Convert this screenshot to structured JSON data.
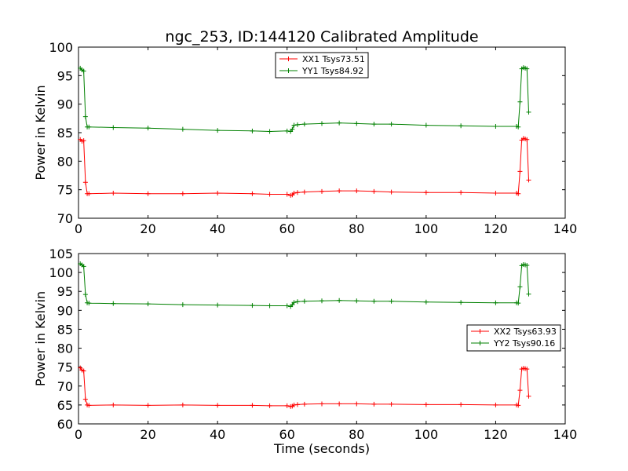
{
  "chart_data": [
    {
      "type": "line",
      "title": "ngc_253, ID:144120 Calibrated Amplitude",
      "xlabel": "",
      "ylabel": "Power in Kelvin",
      "xlim": [
        0,
        140
      ],
      "ylim": [
        70,
        100
      ],
      "xticks": [
        0,
        20,
        40,
        60,
        80,
        100,
        120,
        140
      ],
      "yticks": [
        70,
        75,
        80,
        85,
        90,
        95,
        100
      ],
      "legend_position": "top-center",
      "series": [
        {
          "name": "XX1 Tsys73.51",
          "color": "#ff0000",
          "x": [
            0.5,
            1,
            1.5,
            2,
            2.5,
            3,
            10,
            20,
            30,
            40,
            50,
            55,
            60,
            61,
            61.5,
            62,
            63,
            65,
            70,
            75,
            80,
            85,
            90,
            100,
            110,
            120,
            126,
            126.5,
            127,
            127.5,
            128,
            128.5,
            129,
            129.5
          ],
          "values": [
            83.8,
            83.5,
            83.6,
            76.3,
            74.3,
            74.3,
            74.4,
            74.3,
            74.3,
            74.4,
            74.3,
            74.2,
            74.2,
            74.0,
            74.1,
            74.4,
            74.5,
            74.6,
            74.7,
            74.8,
            74.8,
            74.7,
            74.6,
            74.5,
            74.5,
            74.4,
            74.4,
            74.3,
            78.2,
            83.7,
            84.0,
            83.9,
            83.8,
            76.7
          ]
        },
        {
          "name": "YY1 Tsys84.92",
          "color": "#008000",
          "x": [
            0.5,
            1,
            1.5,
            2,
            2.5,
            3,
            10,
            20,
            30,
            40,
            50,
            55,
            60,
            61,
            61.5,
            62,
            63,
            65,
            70,
            75,
            80,
            85,
            90,
            100,
            110,
            120,
            126,
            126.5,
            127,
            127.5,
            128,
            128.5,
            129,
            129.5
          ],
          "values": [
            96.3,
            96.0,
            95.8,
            87.8,
            86.0,
            86.0,
            85.9,
            85.8,
            85.6,
            85.4,
            85.3,
            85.2,
            85.3,
            85.2,
            85.6,
            86.3,
            86.4,
            86.5,
            86.6,
            86.7,
            86.6,
            86.5,
            86.5,
            86.3,
            86.2,
            86.1,
            86.1,
            86.0,
            90.4,
            96.2,
            96.4,
            96.3,
            96.2,
            88.6
          ]
        }
      ]
    },
    {
      "type": "line",
      "title": "",
      "xlabel": "Time (seconds)",
      "ylabel": "Power in Kelvin",
      "xlim": [
        0,
        140
      ],
      "ylim": [
        60,
        105
      ],
      "xticks": [
        0,
        20,
        40,
        60,
        80,
        100,
        120,
        140
      ],
      "yticks": [
        60,
        65,
        70,
        75,
        80,
        85,
        90,
        95,
        100,
        105
      ],
      "legend_position": "center-right",
      "series": [
        {
          "name": "XX2 Tsys63.93",
          "color": "#ff0000",
          "x": [
            0.5,
            1,
            1.5,
            2,
            2.5,
            3,
            10,
            20,
            30,
            40,
            50,
            55,
            60,
            61,
            61.5,
            62,
            63,
            65,
            70,
            75,
            80,
            85,
            90,
            100,
            110,
            120,
            126,
            126.5,
            127,
            127.5,
            128,
            128.5,
            129,
            129.5
          ],
          "values": [
            74.8,
            74.2,
            74.0,
            66.5,
            65.0,
            64.9,
            65.0,
            64.9,
            65.0,
            64.9,
            64.9,
            64.8,
            64.8,
            64.6,
            64.7,
            65.0,
            65.1,
            65.2,
            65.3,
            65.3,
            65.3,
            65.2,
            65.2,
            65.1,
            65.1,
            65.0,
            65.0,
            64.9,
            68.9,
            74.5,
            74.7,
            74.6,
            74.5,
            67.3
          ]
        },
        {
          "name": "YY2 Tsys90.16",
          "color": "#008000",
          "x": [
            0.5,
            1,
            1.5,
            2,
            2.5,
            3,
            10,
            20,
            30,
            40,
            50,
            55,
            60,
            61,
            61.5,
            62,
            63,
            65,
            70,
            75,
            80,
            85,
            90,
            100,
            110,
            120,
            126,
            126.5,
            127,
            127.5,
            128,
            128.5,
            129,
            129.5
          ],
          "values": [
            102.3,
            102.0,
            101.6,
            94.2,
            92.0,
            91.9,
            91.8,
            91.7,
            91.5,
            91.4,
            91.3,
            91.2,
            91.2,
            91.0,
            91.5,
            92.1,
            92.3,
            92.4,
            92.5,
            92.6,
            92.5,
            92.4,
            92.4,
            92.2,
            92.1,
            92.0,
            92.0,
            91.9,
            96.2,
            101.8,
            102.1,
            102.0,
            101.9,
            94.3
          ]
        }
      ]
    }
  ]
}
